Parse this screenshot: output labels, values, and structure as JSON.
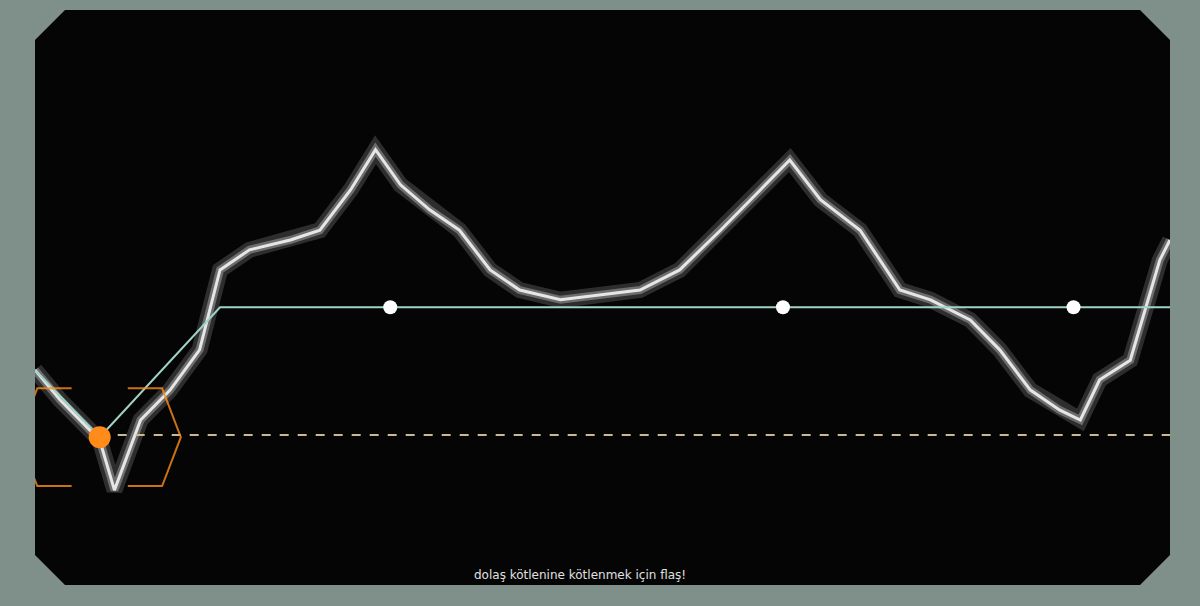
{
  "chart_data": {
    "type": "line",
    "xlim": [
      0,
      100
    ],
    "ylim": [
      0,
      100
    ],
    "xticks": [],
    "yticks": [],
    "tick_labels": false,
    "grid": false,
    "series": [
      {
        "color": "#e6e6e6",
        "line_style": "solid",
        "marker": "none",
        "x": [
          0,
          2.2,
          5.7,
          7.0,
          9.3,
          11.9,
          14.5,
          16.3,
          18.9,
          22.5,
          25.1,
          27.8,
          30.0,
          32.2,
          34.8,
          37.4,
          40.1,
          42.7,
          46.3,
          49.8,
          53.3,
          56.8,
          60.4,
          63.9,
          66.5,
          69.2,
          72.7,
          76.2,
          78.9,
          82.4,
          85.0,
          87.7,
          90.3,
          92.1,
          93.8,
          96.5,
          99.1,
          100
        ],
        "values": [
          37.4,
          32.2,
          25.2,
          16.5,
          28.7,
          33.9,
          40.9,
          54.8,
          58.3,
          60.0,
          61.7,
          68.7,
          75.7,
          69.6,
          65.2,
          61.7,
          54.8,
          51.3,
          49.6,
          50.4,
          51.3,
          54.8,
          61.7,
          68.7,
          73.9,
          67.0,
          61.7,
          51.3,
          49.6,
          46.1,
          40.9,
          33.9,
          30.4,
          28.7,
          35.7,
          39.1,
          56.5,
          60.0
        ]
      },
      {
        "color": "#9fd3c7",
        "line_style": "solid",
        "marker": "none",
        "x": [
          0,
          5.7,
          16.3,
          100
        ],
        "values": [
          37.4,
          25.7,
          48.3,
          48.3
        ]
      },
      {
        "color": "#c9b98f",
        "line_style": "dash",
        "marker": "none",
        "x": [
          5.7,
          100
        ],
        "values": [
          26.1,
          26.1
        ]
      },
      {
        "color": "#ffffff",
        "line_style": "none",
        "marker": "circle",
        "x": [
          31.3,
          65.9,
          91.5
        ],
        "values": [
          48.3,
          48.3,
          48.3
        ]
      },
      {
        "color": "#ff8c1a",
        "line_style": "none",
        "marker": "circle",
        "x": [
          5.7
        ],
        "values": [
          25.7
        ]
      }
    ],
    "annotations": [
      {
        "text": "dolaş kötlenine kötlenmek için flaş!",
        "x": 48.0,
        "y": 1.8
      }
    ]
  }
}
